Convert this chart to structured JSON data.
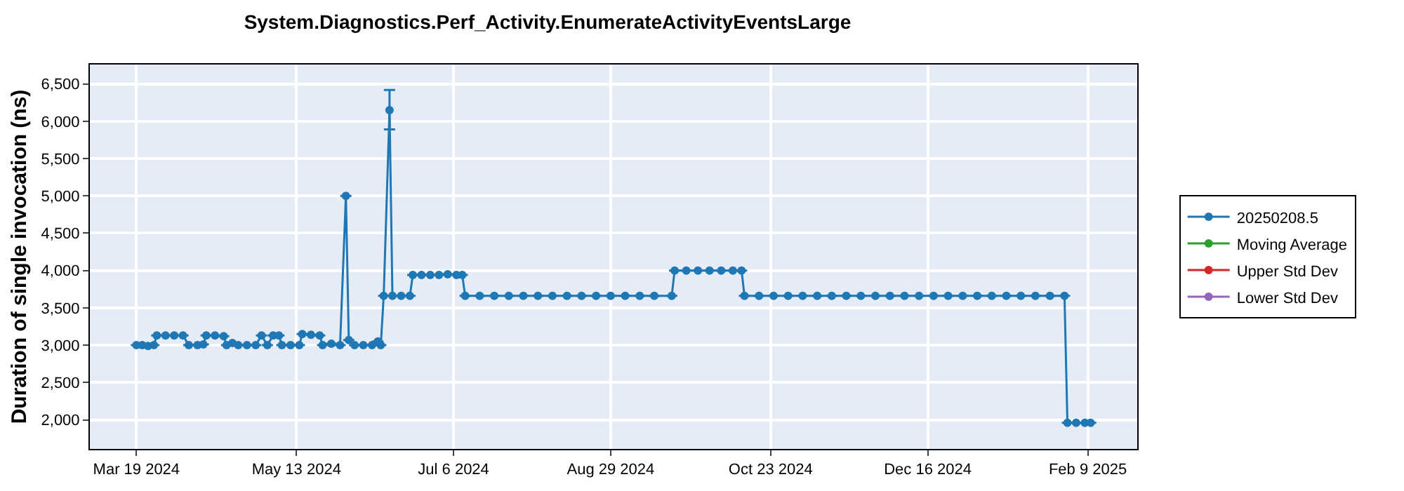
{
  "chart_data": {
    "type": "line",
    "title": "System.Diagnostics.Perf_Activity.EnumerateActivityEventsLarge",
    "ylabel": "Duration of single invocation (ns)",
    "x": [
      "2024-03-19",
      "2024-03-21",
      "2024-03-23",
      "2024-03-25",
      "2024-03-26",
      "2024-03-29",
      "2024-04-01",
      "2024-04-04",
      "2024-04-06",
      "2024-04-09",
      "2024-04-11",
      "2024-04-12",
      "2024-04-15",
      "2024-04-18",
      "2024-04-19",
      "2024-04-21",
      "2024-04-23",
      "2024-04-26",
      "2024-04-29",
      "2024-05-01",
      "2024-05-03",
      "2024-05-05",
      "2024-05-07",
      "2024-05-08",
      "2024-05-11",
      "2024-05-14",
      "2024-05-15",
      "2024-05-18",
      "2024-05-21",
      "2024-05-22",
      "2024-05-25",
      "2024-05-28",
      "2024-05-30",
      "2024-05-31",
      "2024-06-02",
      "2024-06-05",
      "2024-06-08",
      "2024-06-10",
      "2024-06-11",
      "2024-06-12",
      "2024-06-14",
      "2024-06-15",
      "2024-06-18",
      "2024-06-21",
      "2024-06-22",
      "2024-06-25",
      "2024-06-28",
      "2024-07-01",
      "2024-07-04",
      "2024-07-07",
      "2024-07-09",
      "2024-07-10",
      "2024-07-15",
      "2024-07-20",
      "2024-07-25",
      "2024-07-30",
      "2024-08-04",
      "2024-08-09",
      "2024-08-14",
      "2024-08-19",
      "2024-08-24",
      "2024-08-29",
      "2024-09-03",
      "2024-09-08",
      "2024-09-13",
      "2024-09-19",
      "2024-09-20",
      "2024-09-24",
      "2024-09-28",
      "2024-10-02",
      "2024-10-06",
      "2024-10-10",
      "2024-10-13",
      "2024-10-14",
      "2024-10-19",
      "2024-10-24",
      "2024-10-29",
      "2024-11-03",
      "2024-11-08",
      "2024-11-13",
      "2024-11-18",
      "2024-11-23",
      "2024-11-28",
      "2024-12-03",
      "2024-12-08",
      "2024-12-13",
      "2024-12-18",
      "2024-12-23",
      "2024-12-28",
      "2025-01-02",
      "2025-01-07",
      "2025-01-12",
      "2025-01-17",
      "2025-01-22",
      "2025-01-27",
      "2025-02-01",
      "2025-02-02",
      "2025-02-05",
      "2025-02-08",
      "2025-02-10"
    ],
    "series": [
      {
        "name": "20250208.5",
        "color": "#1f77b4",
        "values": [
          3000,
          3000,
          2990,
          3000,
          3130,
          3130,
          3130,
          3130,
          3000,
          3000,
          3010,
          3130,
          3130,
          3120,
          3000,
          3030,
          3000,
          3000,
          3000,
          3130,
          3000,
          3130,
          3130,
          3000,
          3000,
          3000,
          3150,
          3140,
          3130,
          3000,
          3020,
          3000,
          5000,
          3070,
          3000,
          3000,
          3000,
          3050,
          3000,
          3660,
          6150,
          3660,
          3660,
          3660,
          3940,
          3940,
          3940,
          3940,
          3950,
          3940,
          3940,
          3660,
          3660,
          3660,
          3660,
          3660,
          3660,
          3660,
          3660,
          3660,
          3660,
          3660,
          3660,
          3660,
          3660,
          3660,
          4000,
          4000,
          4000,
          4000,
          4000,
          4000,
          4000,
          3660,
          3660,
          3660,
          3660,
          3660,
          3660,
          3660,
          3660,
          3660,
          3660,
          3660,
          3660,
          3660,
          3660,
          3660,
          3660,
          3660,
          3660,
          3660,
          3660,
          3660,
          3660,
          3660,
          1960,
          1960,
          1960,
          1960
        ],
        "errors": [
          null,
          null,
          null,
          null,
          null,
          null,
          null,
          null,
          null,
          null,
          null,
          null,
          null,
          null,
          null,
          null,
          null,
          null,
          null,
          null,
          null,
          null,
          null,
          null,
          null,
          null,
          null,
          null,
          null,
          null,
          null,
          null,
          null,
          null,
          null,
          null,
          null,
          null,
          null,
          null,
          [
            5890,
            6420
          ],
          null,
          null,
          null,
          null,
          null,
          null,
          null,
          null,
          null,
          null,
          null,
          null,
          null,
          null,
          null,
          null,
          null,
          null,
          null,
          null,
          null,
          null,
          null,
          null,
          null,
          null,
          null,
          null,
          null,
          null,
          null,
          null,
          null,
          null,
          null,
          null,
          null,
          null,
          null,
          null,
          null,
          null,
          null,
          null,
          null,
          null,
          null,
          null,
          null,
          null,
          null,
          null,
          null,
          null,
          null,
          null,
          null,
          null,
          null
        ]
      },
      {
        "name": "Moving Average",
        "color": "#2ca02c",
        "values": [
          null,
          null,
          null,
          null,
          null,
          null,
          null,
          null,
          null,
          null,
          null,
          null,
          null,
          null,
          null,
          null,
          null,
          null,
          null,
          null,
          null,
          null,
          null,
          null,
          null,
          null,
          null,
          null,
          null,
          null,
          null,
          null,
          null,
          null,
          null,
          null,
          null,
          null,
          null,
          null,
          null,
          null,
          null,
          null,
          null,
          null,
          null,
          null,
          null,
          null,
          null,
          null,
          null,
          null,
          null,
          null,
          null,
          null,
          null,
          null,
          null,
          null,
          null,
          null,
          null,
          null,
          null,
          null,
          null,
          null,
          null,
          null,
          null,
          null,
          null,
          null,
          null,
          null,
          null,
          null,
          null,
          null,
          null,
          null,
          null,
          null,
          null,
          null,
          null,
          null,
          null,
          null,
          null,
          null,
          null,
          null,
          null,
          null,
          null,
          null
        ]
      },
      {
        "name": "Upper Std Dev",
        "color": "#d62728",
        "values": [
          null,
          null,
          null,
          null,
          null,
          null,
          null,
          null,
          null,
          null,
          null,
          null,
          null,
          null,
          null,
          null,
          null,
          null,
          null,
          null,
          null,
          null,
          null,
          null,
          null,
          null,
          null,
          null,
          null,
          null,
          null,
          null,
          null,
          null,
          null,
          null,
          null,
          null,
          null,
          null,
          null,
          null,
          null,
          null,
          null,
          null,
          null,
          null,
          null,
          null,
          null,
          null,
          null,
          null,
          null,
          null,
          null,
          null,
          null,
          null,
          null,
          null,
          null,
          null,
          null,
          null,
          null,
          null,
          null,
          null,
          null,
          null,
          null,
          null,
          null,
          null,
          null,
          null,
          null,
          null,
          null,
          null,
          null,
          null,
          null,
          null,
          null,
          null,
          null,
          null,
          null,
          null,
          null,
          null,
          null,
          null,
          null,
          null,
          null,
          null
        ]
      },
      {
        "name": "Lower Std Dev",
        "color": "#9467bd",
        "values": [
          null,
          null,
          null,
          null,
          null,
          null,
          null,
          null,
          null,
          null,
          null,
          null,
          null,
          null,
          null,
          null,
          null,
          null,
          null,
          null,
          null,
          null,
          null,
          null,
          null,
          null,
          null,
          null,
          null,
          null,
          null,
          null,
          null,
          null,
          null,
          null,
          null,
          null,
          null,
          null,
          null,
          null,
          null,
          null,
          null,
          null,
          null,
          null,
          null,
          null,
          null,
          null,
          null,
          null,
          null,
          null,
          null,
          null,
          null,
          null,
          null,
          null,
          null,
          null,
          null,
          null,
          null,
          null,
          null,
          null,
          null,
          null,
          null,
          null,
          null,
          null,
          null,
          null,
          null,
          null,
          null,
          null,
          null,
          null,
          null,
          null,
          null,
          null,
          null,
          null,
          null,
          null,
          null,
          null,
          null,
          null,
          null,
          null,
          null,
          null
        ]
      }
    ],
    "xlim": [
      "2024-03-03",
      "2025-02-26"
    ],
    "xticks": [
      {
        "value": "2024-03-19",
        "label": "Mar 19 2024"
      },
      {
        "value": "2024-05-13",
        "label": "May 13 2024"
      },
      {
        "value": "2024-07-06",
        "label": "Jul 6 2024"
      },
      {
        "value": "2024-08-29",
        "label": "Aug 29 2024"
      },
      {
        "value": "2024-10-23",
        "label": "Oct 23 2024"
      },
      {
        "value": "2024-12-16",
        "label": "Dec 16 2024"
      },
      {
        "value": "2025-02-09",
        "label": "Feb 9 2025"
      }
    ],
    "ylim": [
      1610,
      6760
    ],
    "yticks": [
      {
        "value": 2000,
        "label": "2,000"
      },
      {
        "value": 2500,
        "label": "2,500"
      },
      {
        "value": 3000,
        "label": "3,000"
      },
      {
        "value": 3500,
        "label": "3,500"
      },
      {
        "value": 4000,
        "label": "4,000"
      },
      {
        "value": 4500,
        "label": "4,500"
      },
      {
        "value": 5000,
        "label": "5,000"
      },
      {
        "value": 5500,
        "label": "5,500"
      },
      {
        "value": 6000,
        "label": "6,000"
      },
      {
        "value": 6500,
        "label": "6,500"
      }
    ],
    "grid": true,
    "legend": "right",
    "marker": "circle",
    "line_style": "solid"
  }
}
